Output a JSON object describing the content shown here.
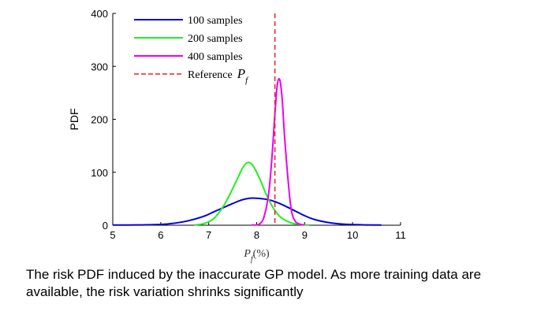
{
  "chart_data": {
    "type": "line",
    "title": "",
    "xlabel": "P_f(%)",
    "ylabel": "PDF",
    "xlim": [
      5,
      11
    ],
    "ylim": [
      0,
      400
    ],
    "xticks": [
      "5",
      "6",
      "7",
      "8",
      "9",
      "10",
      "11"
    ],
    "yticks": [
      "0",
      "100",
      "200",
      "300",
      "400"
    ],
    "legend_position": "top-left",
    "series": [
      {
        "name": "100 samples",
        "color": "#0000dd",
        "style": "solid",
        "x": [
          5.0,
          5.5,
          6.0,
          6.3,
          6.6,
          6.9,
          7.1,
          7.3,
          7.5,
          7.7,
          7.85,
          8.0,
          8.2,
          8.4,
          8.6,
          8.8,
          9.0,
          9.2,
          9.5,
          9.8,
          10.2,
          10.6
        ],
        "y": [
          0.3,
          0.5,
          1.5,
          4,
          9,
          17,
          25,
          33,
          41,
          48,
          51,
          51,
          49,
          44,
          36,
          27,
          18,
          11,
          5,
          2,
          0.8,
          0.4
        ]
      },
      {
        "name": "200 samples",
        "color": "#22ee22",
        "style": "solid",
        "x": [
          6.7,
          6.9,
          7.1,
          7.3,
          7.45,
          7.6,
          7.7,
          7.8,
          7.9,
          8.0,
          8.1,
          8.2,
          8.35,
          8.5,
          8.7,
          8.9,
          9.1
        ],
        "y": [
          0.5,
          3,
          12,
          35,
          60,
          88,
          107,
          118,
          115,
          100,
          80,
          58,
          32,
          15,
          5,
          1.5,
          0.3
        ]
      },
      {
        "name": "400 samples",
        "color": "#ee00ee",
        "style": "solid",
        "x": [
          7.9,
          8.05,
          8.15,
          8.25,
          8.32,
          8.38,
          8.43,
          8.48,
          8.53,
          8.58,
          8.65,
          8.72,
          8.8,
          8.9,
          9.0
        ],
        "y": [
          0.5,
          2,
          15,
          60,
          130,
          210,
          265,
          275,
          240,
          170,
          90,
          30,
          8,
          2,
          0.5
        ]
      },
      {
        "name": "Reference",
        "legend_symbol": "P_f",
        "color": "#e8202a",
        "style": "dashed",
        "vline_x": 8.38
      }
    ]
  },
  "caption": "The risk PDF induced by the inaccurate GP model. As more training data are available, the risk variation shrinks significantly"
}
